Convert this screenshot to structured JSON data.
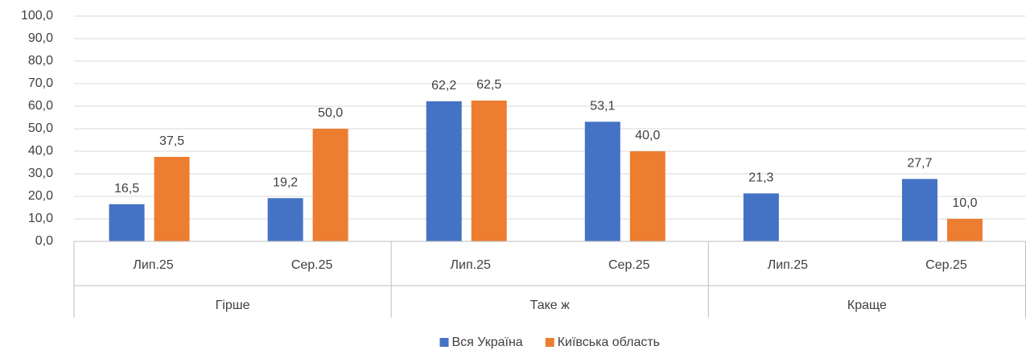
{
  "chart_data": {
    "type": "bar",
    "categories": [
      "Лип.25",
      "Сер.25",
      "Лип.25",
      "Сер.25",
      "Лип.25",
      "Сер.25"
    ],
    "groups": [
      "Гірше",
      "Таке ж",
      "Краще"
    ],
    "series": [
      {
        "name": "Вся Україна",
        "color": "#4472c4",
        "values": [
          16.5,
          19.2,
          62.2,
          53.1,
          21.3,
          27.7
        ],
        "value_labels": [
          "16,5",
          "19,2",
          "62,2",
          "53,1",
          "21,3",
          "27,7"
        ]
      },
      {
        "name": "Київська область",
        "color": "#ed7d31",
        "values": [
          37.5,
          50.0,
          62.5,
          40.0,
          null,
          10.0
        ],
        "value_labels": [
          "37,5",
          "50,0",
          "62,5",
          "40,0",
          null,
          "10,0"
        ]
      }
    ],
    "ylim": [
      0,
      100
    ],
    "yticks": [
      {
        "value": 0,
        "label": "0,0"
      },
      {
        "value": 10,
        "label": "10,0"
      },
      {
        "value": 20,
        "label": "20,0"
      },
      {
        "value": 30,
        "label": "30,0"
      },
      {
        "value": 40,
        "label": "40,0"
      },
      {
        "value": 50,
        "label": "50,0"
      },
      {
        "value": 60,
        "label": "60,0"
      },
      {
        "value": 70,
        "label": "70,0"
      },
      {
        "value": 80,
        "label": "80,0"
      },
      {
        "value": 90,
        "label": "90,0"
      },
      {
        "value": 100,
        "label": "100,0"
      }
    ],
    "grid": true,
    "legend": "bottom"
  }
}
